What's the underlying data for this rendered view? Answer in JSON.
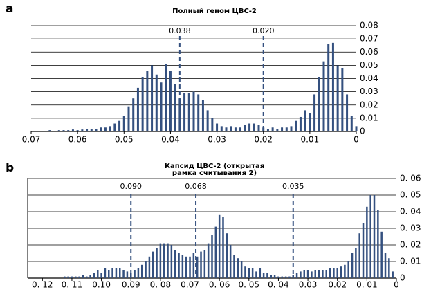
{
  "chart_data": [
    {
      "type": "bar",
      "panel_label": "a",
      "title": [
        "Полный геном ЦВС-2"
      ],
      "color": "#34507f",
      "grid": true,
      "xlim": [
        0.07,
        0
      ],
      "xticks": [
        0.07,
        0.06,
        0.05,
        0.04,
        0.03,
        0.02,
        0.01,
        0
      ],
      "ylim": [
        0,
        0.08
      ],
      "yticks": [
        0,
        0.01,
        0.02,
        0.03,
        0.04,
        0.05,
        0.06,
        0.07,
        0.08
      ],
      "reference_lines": [
        0.038,
        {
          "value": 0.02,
          "label": "0.020"
        }
      ],
      "x": [
        0.07,
        0.069,
        0.068,
        0.067,
        0.066,
        0.065,
        0.064,
        0.063,
        0.062,
        0.061,
        0.06,
        0.059,
        0.058,
        0.057,
        0.056,
        0.055,
        0.054,
        0.053,
        0.052,
        0.051,
        0.05,
        0.049,
        0.048,
        0.047,
        0.046,
        0.045,
        0.044,
        0.043,
        0.042,
        0.041,
        0.04,
        0.039,
        0.038,
        0.037,
        0.036,
        0.035,
        0.034,
        0.033,
        0.032,
        0.031,
        0.03,
        0.029,
        0.028,
        0.027,
        0.026,
        0.025,
        0.024,
        0.023,
        0.022,
        0.021,
        0.02,
        0.019,
        0.018,
        0.017,
        0.016,
        0.015,
        0.014,
        0.013,
        0.012,
        0.011,
        0.01,
        0.009,
        0.008,
        0.007,
        0.006,
        0.005,
        0.004,
        0.003,
        0.002,
        0.001,
        0
      ],
      "values": [
        0.0005,
        0.0005,
        0.0005,
        0.0005,
        0.001,
        0.0005,
        0.001,
        0.001,
        0.001,
        0.0015,
        0.001,
        0.0015,
        0.002,
        0.002,
        0.002,
        0.003,
        0.003,
        0.004,
        0.006,
        0.008,
        0.012,
        0.019,
        0.025,
        0.033,
        0.041,
        0.046,
        0.05,
        0.043,
        0.037,
        0.051,
        0.046,
        0.036,
        0.025,
        0.029,
        0.029,
        0.03,
        0.028,
        0.024,
        0.016,
        0.01,
        0.006,
        0.004,
        0.003,
        0.004,
        0.003,
        0.003,
        0.005,
        0.006,
        0.006,
        0.005,
        0.003,
        0.002,
        0.003,
        0.002,
        0.003,
        0.003,
        0.004,
        0.008,
        0.011,
        0.016,
        0.014,
        0.028,
        0.041,
        0.053,
        0.066,
        0.067,
        0.05,
        0.048,
        0.028,
        0.012,
        0.004
      ]
    },
    {
      "type": "bar",
      "panel_label": "b",
      "title": [
        "Капсид ЦВС-2 (открытая",
        "рамка считывания 2)"
      ],
      "color": "#34507f",
      "grid": true,
      "xlim": [
        0.125,
        0
      ],
      "xticks": [
        {
          "value": 0.12,
          "label": "0. 12"
        },
        {
          "value": 0.11,
          "label": "0. 11"
        },
        {
          "value": 0.1,
          "label": "0.10"
        },
        0.09,
        {
          "value": 0.08,
          "label": "0. 08"
        },
        0.07,
        {
          "value": 0.06,
          "label": "0. 06"
        },
        {
          "value": 0.05,
          "label": "0. 05"
        },
        {
          "value": 0.04,
          "label": "0. 04"
        },
        0.03,
        0.02,
        {
          "value": 0.01,
          "label": "0. 01"
        },
        0
      ],
      "ylim": [
        0,
        0.06
      ],
      "yticks": [
        0,
        {
          "value": 0.01,
          "label": "0. 01"
        },
        {
          "value": 0.02,
          "label": "0. 02"
        },
        {
          "value": 0.03,
          "label": "0. 03"
        },
        {
          "value": 0.04,
          "label": "0. 04"
        },
        {
          "value": 0.05,
          "label": "0. 05"
        },
        {
          "value": 0.06,
          "label": "0. 06"
        }
      ],
      "reference_lines": [
        {
          "value": 0.09,
          "label": "0.090"
        },
        0.068,
        0.035
      ],
      "x": [
        0.1125,
        0.11125,
        0.11,
        0.10875,
        0.1075,
        0.10625,
        0.105,
        0.10375,
        0.1025,
        0.10125,
        0.1,
        0.09875,
        0.0975,
        0.09625,
        0.095,
        0.09375,
        0.0925,
        0.09125,
        0.09,
        0.08875,
        0.0875,
        0.08625,
        0.085,
        0.08375,
        0.0825,
        0.08125,
        0.08,
        0.07875,
        0.0775,
        0.07625,
        0.075,
        0.07375,
        0.0725,
        0.07125,
        0.07,
        0.06875,
        0.0675,
        0.06625,
        0.065,
        0.06375,
        0.0625,
        0.06125,
        0.06,
        0.05875,
        0.0575,
        0.05625,
        0.055,
        0.05375,
        0.0525,
        0.05125,
        0.05,
        0.04875,
        0.0475,
        0.04625,
        0.045,
        0.04375,
        0.0425,
        0.04125,
        0.04,
        0.03875,
        0.0375,
        0.03625,
        0.035,
        0.03375,
        0.0325,
        0.03125,
        0.03,
        0.02875,
        0.0275,
        0.02625,
        0.025,
        0.02375,
        0.0225,
        0.02125,
        0.02,
        0.01875,
        0.0175,
        0.01625,
        0.015,
        0.01375,
        0.0125,
        0.01125,
        0.01,
        0.00875,
        0.0075,
        0.00625,
        0.005,
        0.00375,
        0.0025,
        0.00125
      ],
      "values": [
        0.001,
        0.001,
        0.001,
        0.001,
        0.001,
        0.002,
        0.001,
        0.002,
        0.003,
        0.005,
        0.003,
        0.006,
        0.005,
        0.006,
        0.006,
        0.006,
        0.005,
        0.004,
        0.003,
        0.005,
        0.006,
        0.008,
        0.01,
        0.013,
        0.016,
        0.018,
        0.021,
        0.021,
        0.021,
        0.02,
        0.017,
        0.015,
        0.014,
        0.013,
        0.013,
        0.015,
        0.013,
        0.016,
        0.017,
        0.021,
        0.026,
        0.031,
        0.038,
        0.037,
        0.027,
        0.02,
        0.014,
        0.012,
        0.01,
        0.007,
        0.006,
        0.006,
        0.004,
        0.006,
        0.003,
        0.003,
        0.002,
        0.002,
        0.001,
        0.001,
        0.001,
        0.001,
        0.002,
        0.003,
        0.004,
        0.005,
        0.005,
        0.004,
        0.005,
        0.005,
        0.005,
        0.005,
        0.006,
        0.006,
        0.006,
        0.007,
        0.008,
        0.01,
        0.015,
        0.018,
        0.027,
        0.033,
        0.043,
        0.05,
        0.05,
        0.041,
        0.028,
        0.015,
        0.012,
        0.004
      ]
    }
  ]
}
